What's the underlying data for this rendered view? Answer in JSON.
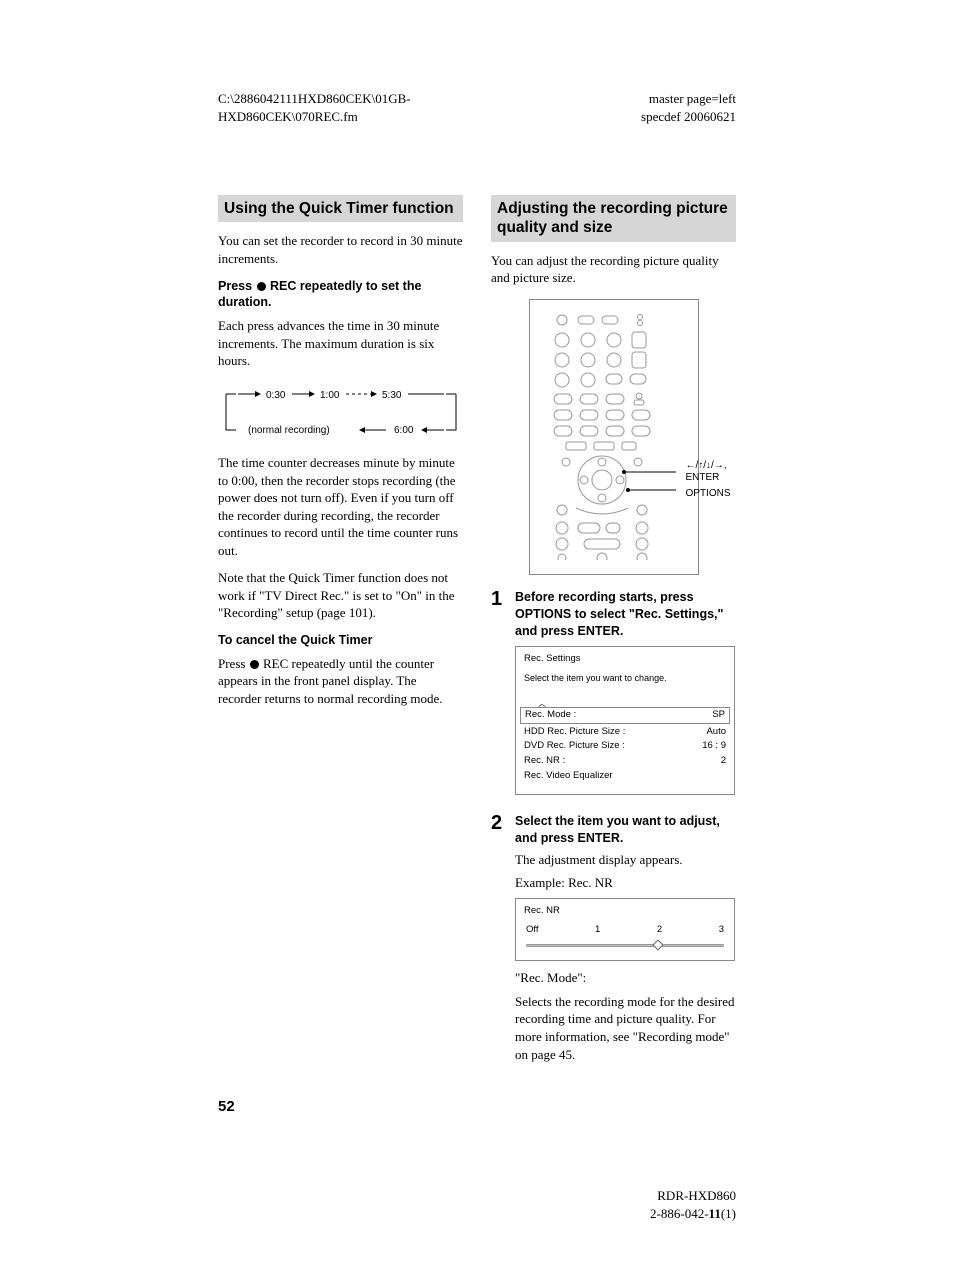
{
  "header": {
    "left_line1": "C:\\2886042111HXD860CEK\\01GB-",
    "left_line2": "HXD860CEK\\070REC.fm",
    "right_line1": "master page=left",
    "right_line2": "specdef 20060621"
  },
  "left": {
    "section_title": "Using the Quick Timer function",
    "intro": "You can set the recorder to record in 30 minute increments.",
    "press_head_pre": "Press ",
    "press_head_post": " REC repeatedly to set the duration.",
    "press_body": "Each press advances the time in 30 minute increments. The maximum duration is six hours.",
    "diagram": {
      "t1": "0:30",
      "t2": "1:00",
      "t3": "5:30",
      "t4": "6:00",
      "normal": "(normal recording)",
      "font_size": 10,
      "stroke": "#000"
    },
    "after1": "The time counter decreases minute by minute to 0:00, then the recorder stops recording (the power does not turn off). Even if you turn off the recorder during recording, the recorder continues to record until the time counter runs out.",
    "after2": "Note that the Quick Timer function does not work if \"TV Direct Rec.\" is set to \"On\" in the \"Recording\" setup (page 101).",
    "cancel_head": "To cancel the Quick Timer",
    "cancel_body_pre": "Press ",
    "cancel_body_post": " REC repeatedly until the counter appears in the front panel display. The recorder returns to normal recording mode."
  },
  "right": {
    "section_title": "Adjusting the recording picture quality and size",
    "intro": "You can adjust the recording picture quality and picture size.",
    "remote": {
      "label_arrows": "←/↑/↓/→,",
      "label_enter": "ENTER",
      "label_options": "OPTIONS",
      "colors": {
        "stroke": "#888",
        "fill": "#fff"
      }
    },
    "steps": [
      {
        "num": "1",
        "head": "Before recording starts, press OPTIONS to select \"Rec. Settings,\" and press ENTER."
      },
      {
        "num": "2",
        "head": "Select the item you want to adjust, and press ENTER.",
        "body": "The adjustment display appears.",
        "example": "Example: Rec. NR"
      }
    ],
    "rec_settings": {
      "title": "Rec. Settings",
      "subtitle": "Select the item you want to change.",
      "rows": [
        {
          "label": "Rec. Mode :",
          "value": "SP",
          "boxed": true
        },
        {
          "label": "HDD Rec. Picture Size :",
          "value": "Auto"
        },
        {
          "label": "DVD Rec. Picture Size :",
          "value": "16 : 9"
        },
        {
          "label": "Rec. NR :",
          "value": "2"
        },
        {
          "label": "Rec. Video Equalizer",
          "value": ""
        }
      ]
    },
    "rec_nr": {
      "title": "Rec. NR",
      "labels": [
        "Off",
        "1",
        "2",
        "3"
      ],
      "value_index": 2,
      "track_color": "#bdbdbd",
      "thumb_color": "#ffffff"
    },
    "rec_mode_head": "\"Rec. Mode\":",
    "rec_mode_body": "Selects the recording mode for the desired recording time and picture quality. For more information, see \"Recording mode\" on page 45."
  },
  "page_number": "52",
  "footer": {
    "line1": "RDR-HXD860",
    "line2_pre": "2-886-042-",
    "line2_bold": "11",
    "line2_post": "(1)"
  }
}
